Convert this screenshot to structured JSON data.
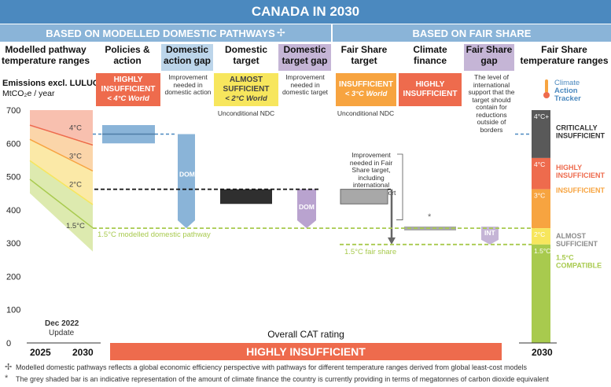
{
  "title": "CANADA IN 2030",
  "section_left": "BASED ON MODELLED DOMESTIC PATHWAYS",
  "section_left_symbol": "✢",
  "section_right": "BASED ON FAIR SHARE",
  "columns": [
    {
      "key": "modelled",
      "label": "Modelled pathway temperature ranges"
    },
    {
      "key": "policies",
      "label": "Policies & action"
    },
    {
      "key": "dag",
      "label": "Domestic action gap"
    },
    {
      "key": "dt",
      "label": "Domestic target"
    },
    {
      "key": "dtg",
      "label": "Domestic target gap"
    },
    {
      "key": "fst",
      "label": "Fair Share target"
    },
    {
      "key": "cf",
      "label": "Climate finance"
    },
    {
      "key": "fsg",
      "label": "Fair Share gap"
    },
    {
      "key": "fstr",
      "label": "Fair Share temperature ranges"
    }
  ],
  "ylabel_line1": "Emissions excl. LULUCF",
  "ylabel_line2": "MtCO₂e / year",
  "ratings": {
    "policies": {
      "label": "HIGHLY INSUFFICIENT",
      "sub": "< 4°C World",
      "color": "#ee6b4d"
    },
    "dt": {
      "label": "ALMOST SUFFICIENT",
      "sub": "< 2°C World",
      "color": "#f7e65d"
    },
    "fst": {
      "label": "INSUFFICIENT",
      "sub": "< 3°C World",
      "color": "#f7a440"
    },
    "cf": {
      "label": "HIGHLY INSUFFICIENT",
      "sub": "",
      "color": "#ee6b4d"
    }
  },
  "notes": {
    "dag": "Improvement needed in domestic action",
    "dtg": "Improvement needed in domestic target",
    "dt_under": "Unconditional NDC",
    "fst_under": "Unconditional NDC",
    "fsg": "The level of international support that the target should contain for reductions outside of borders",
    "fs_improve": "Improvement needed in Fair Share target, including international finance / support"
  },
  "cat_logo": [
    "Climate",
    "Action",
    "Tracker"
  ],
  "chart_data": {
    "type": "bar",
    "ylim": [
      0,
      700
    ],
    "yticks": [
      0,
      100,
      200,
      300,
      400,
      500,
      600,
      700
    ],
    "x_labels": [
      "2025",
      "2030"
    ],
    "update_label": [
      "Dec 2022",
      "Update"
    ],
    "modelled_bands": [
      {
        "label": "4°C",
        "color": "#f7b9a6"
      },
      {
        "label": "3°C",
        "color": "#fbd0a0"
      },
      {
        "label": "2°C",
        "color": "#fbe79d"
      },
      {
        "label": "1.5°C",
        "color": "#d9e8a6"
      }
    ],
    "policies_range": [
      600,
      655
    ],
    "policies_mid": 628,
    "domestic_target_range": [
      418,
      462
    ],
    "fair_share_target_range": [
      418,
      462
    ],
    "climate_finance_value": 343,
    "dom_label": "DOM",
    "int_label": "INT",
    "finance_star": "*",
    "line_1_5_domestic": {
      "value": 345,
      "label": "1.5°C modelled domestic pathway"
    },
    "line_1_5_fair": {
      "value": 296,
      "label": "1.5°C fair share"
    },
    "fair_share_ranges": [
      {
        "label": "4°C+",
        "color": "#595959"
      },
      {
        "label": "4°C",
        "color": "#ee6b4d"
      },
      {
        "label": "3°C",
        "color": "#f7a440"
      },
      {
        "label": "2°C",
        "color": "#f7e65d"
      },
      {
        "label": "1.5°C",
        "color": "#a8ca4e"
      }
    ],
    "fair_share_range_labels": [
      {
        "label": "CRITICALLY INSUFFICIENT",
        "color": "#333333"
      },
      {
        "label": "HIGHLY INSUFFICIENT",
        "color": "#ee6b4d"
      },
      {
        "label": "INSUFFICIENT",
        "color": "#f7a440"
      },
      {
        "label": "ALMOST SUFFICIENT",
        "color": "#8c8c8c"
      },
      {
        "label": "1.5°C COMPATIBLE",
        "color": "#a8ca4e"
      }
    ],
    "right_x_label": "2030"
  },
  "overall_label": "Overall CAT rating",
  "overall_value": "HIGHLY INSUFFICIENT",
  "footnotes": [
    {
      "symbol": "✢",
      "text": "Modelled domestic pathways reflects a global economic efficiency perspective with pathways for different temperature ranges derived from global least-cost models"
    },
    {
      "symbol": "*",
      "text": "The grey shaded bar is an indicative representation of the amount of climate finance the country is currently providing in terms of megatonnes of carbon dioxide equivalent"
    }
  ]
}
